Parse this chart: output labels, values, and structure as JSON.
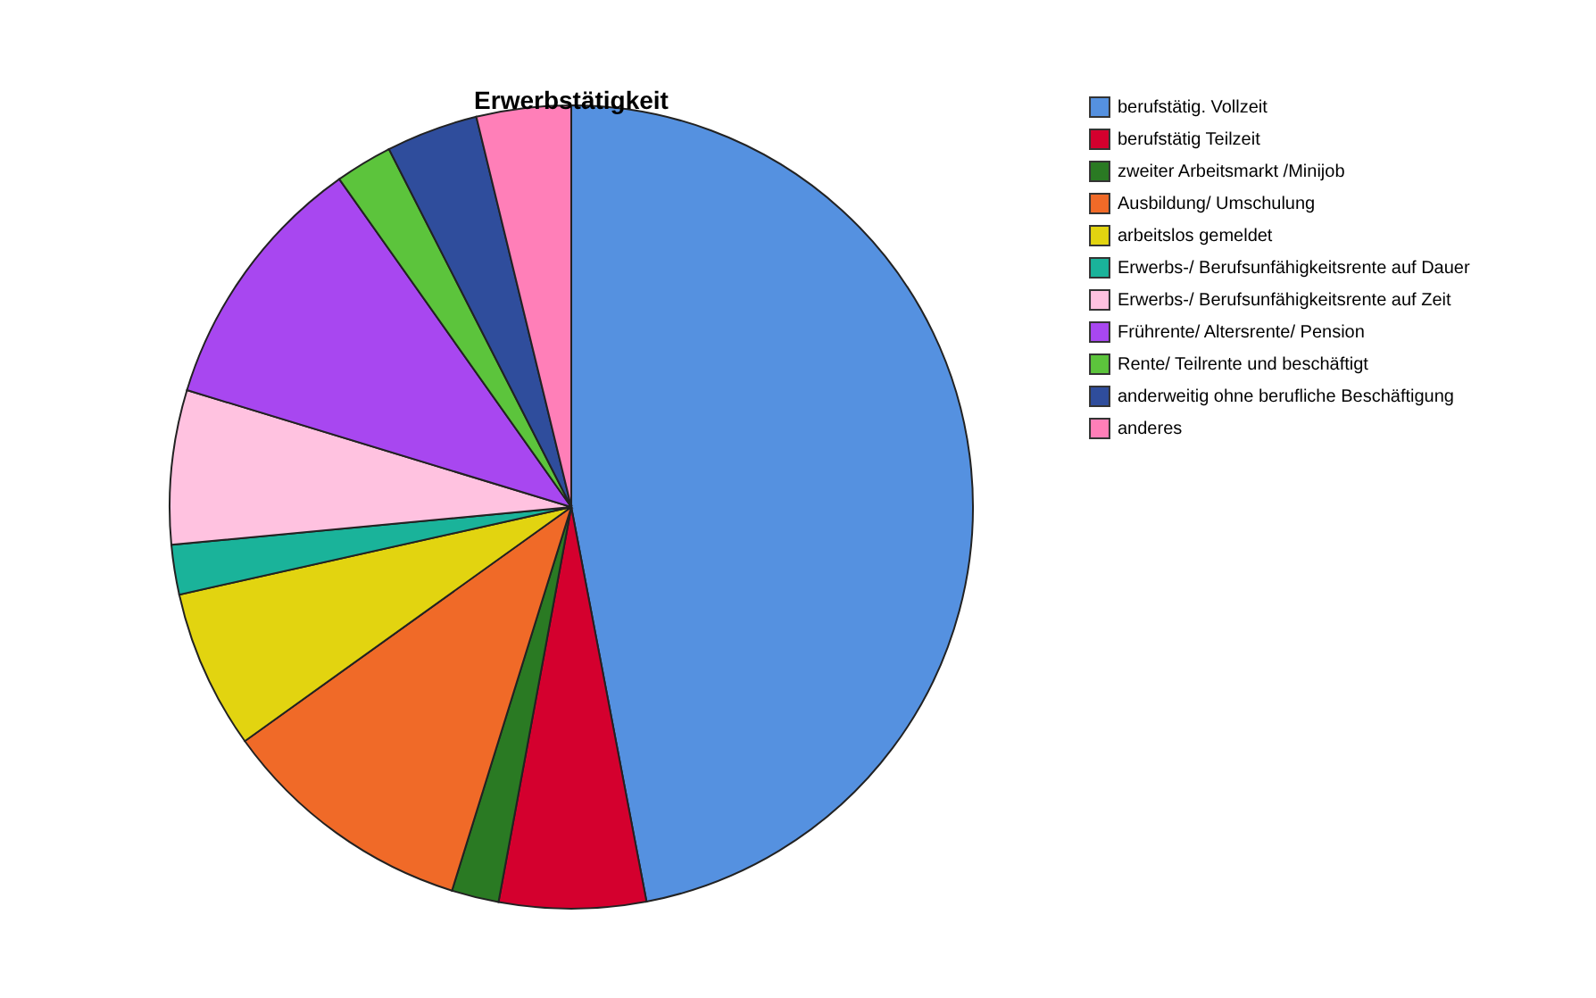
{
  "chart_data": {
    "type": "pie",
    "title": "Erwerbstätigkeit",
    "categories": [
      "berufstätig. Vollzeit",
      "berufstätig Teilzeit",
      "zweiter Arbeitsmarkt /Minijob",
      "Ausbildung/ Umschulung",
      "arbeitslos gemeldet",
      "Erwerbs-/ Berufsunfähigkeitsrente auf Dauer",
      "Erwerbs-/ Berufsunfähigkeitsrente auf Zeit",
      "Frührente/ Altersrente/ Pension",
      "Rente/ Teilrente und beschäftigt",
      "anderweitig ohne berufliche Beschäftigung",
      "anderes"
    ],
    "values": [
      47,
      5.9,
      1.9,
      10.3,
      6.4,
      2,
      6.2,
      10.5,
      2.3,
      3.7,
      3.8
    ],
    "colors": [
      "#5591e0",
      "#d4002e",
      "#2a7a23",
      "#f06a28",
      "#e2d410",
      "#1ab39a",
      "#ffc2e0",
      "#a847f0",
      "#5cc43c",
      "#2f4d9c",
      "#ff7fb8"
    ],
    "legend": "right"
  }
}
